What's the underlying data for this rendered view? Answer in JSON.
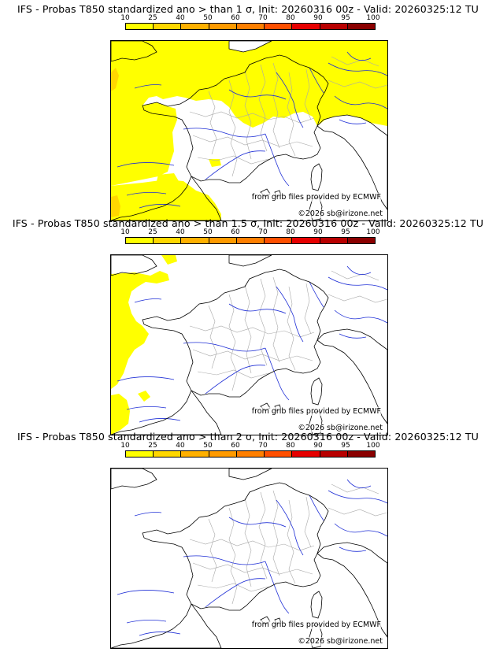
{
  "colorbar": {
    "ticks": [
      "10",
      "25",
      "40",
      "50",
      "60",
      "70",
      "80",
      "90",
      "95",
      "100"
    ],
    "colors": [
      "#ffff00",
      "#ffd700",
      "#ffb000",
      "#ff9a00",
      "#ff7f00",
      "#ff4f00",
      "#e60000",
      "#b80000",
      "#8a0000",
      "#5c0000"
    ]
  },
  "panels": [
    {
      "title": "IFS - Probas T850  standardized ano > than 1 σ, Init: 20260316 00z - Valid: 20260325:12 TU",
      "level": "high"
    },
    {
      "title": "IFS - Probas T850  standardized ano > than 1.5 σ, Init: 20260316 00z - Valid: 20260325:12 TU",
      "level": "low"
    },
    {
      "title": "IFS - Probas T850  standardized ano > than 2 σ, Init: 20260316 00z - Valid: 20260325:12 TU",
      "level": "none"
    }
  ],
  "credits": {
    "source": "from grib files provided by ECMWF",
    "copyright": "©2026 sb@irizone.net"
  },
  "map_colors": {
    "land_fill": "#ffffff",
    "prob_main": "#ffff00",
    "prob_high": "#ffd700",
    "coast": "#000000",
    "rivers": "#1f2fd6",
    "admin": "#a9a9a9"
  }
}
